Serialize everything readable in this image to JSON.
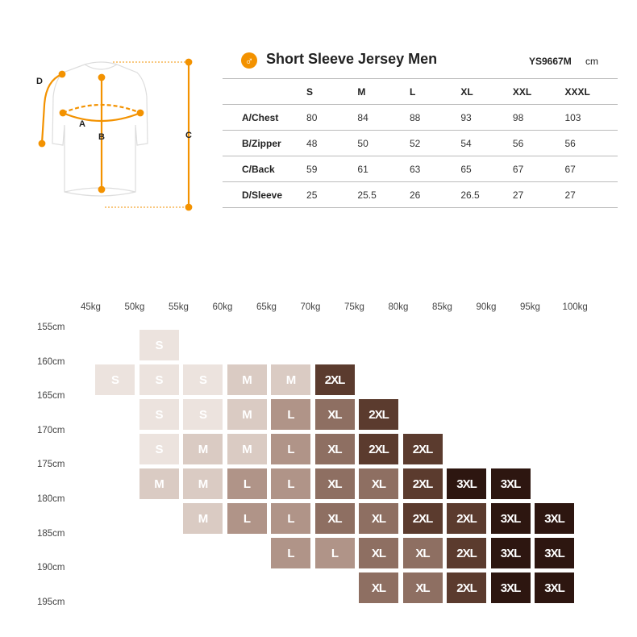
{
  "header": {
    "title": "Short Sleeve Jersey Men",
    "icon": "male-icon",
    "code": "YS9667M",
    "unit": "cm",
    "accent": "#f39200"
  },
  "diagram": {
    "labels": [
      "A",
      "B",
      "C",
      "D"
    ]
  },
  "size_table": {
    "columns": [
      "S",
      "M",
      "L",
      "XL",
      "XXL",
      "XXXL"
    ],
    "rows": [
      {
        "label": "A/Chest",
        "values": [
          "80",
          "84",
          "88",
          "93",
          "98",
          "103"
        ]
      },
      {
        "label": "B/Zipper",
        "values": [
          "48",
          "50",
          "52",
          "54",
          "56",
          "56"
        ]
      },
      {
        "label": "C/Back",
        "values": [
          "59",
          "61",
          "63",
          "65",
          "67",
          "67"
        ]
      },
      {
        "label": "D/Sleeve",
        "values": [
          "25",
          "25.5",
          "26",
          "26.5",
          "27",
          "27"
        ]
      }
    ]
  },
  "size_grid": {
    "weights": [
      "45kg",
      "50kg",
      "55kg",
      "60kg",
      "65kg",
      "70kg",
      "75kg",
      "80kg",
      "85kg",
      "90kg",
      "95kg",
      "100kg"
    ],
    "heights": [
      "155cm",
      "160cm",
      "165cm",
      "170cm",
      "175cm",
      "180cm",
      "185cm",
      "190cm",
      "195cm"
    ],
    "colors": {
      "S": "#ece3de",
      "M": "#dacbc3",
      "L": "#b09488",
      "XL": "#8e6f62",
      "2XL": "#5b3b2e",
      "3XL": "#2d1610"
    },
    "rows": [
      {
        "start": 1,
        "cells": [
          "S"
        ]
      },
      {
        "start": 0,
        "cells": [
          "S",
          "S",
          "S",
          "M",
          "M",
          "2XL"
        ]
      },
      {
        "start": 1,
        "cells": [
          "S",
          "S",
          "M",
          "L",
          "XL",
          "2XL"
        ]
      },
      {
        "start": 1,
        "cells": [
          "S",
          "M",
          "M",
          "L",
          "XL",
          "2XL",
          "2XL"
        ]
      },
      {
        "start": 1,
        "cells": [
          "M",
          "M",
          "L",
          "L",
          "XL",
          "XL",
          "2XL",
          "3XL",
          "3XL"
        ]
      },
      {
        "start": 2,
        "cells": [
          "M",
          "L",
          "L",
          "XL",
          "XL",
          "2XL",
          "2XL",
          "3XL",
          "3XL"
        ]
      },
      {
        "start": 4,
        "cells": [
          "L",
          "L",
          "XL",
          "XL",
          "2XL",
          "3XL",
          "3XL"
        ]
      },
      {
        "start": 6,
        "cells": [
          "XL",
          "XL",
          "2XL",
          "3XL",
          "3XL"
        ]
      }
    ]
  }
}
